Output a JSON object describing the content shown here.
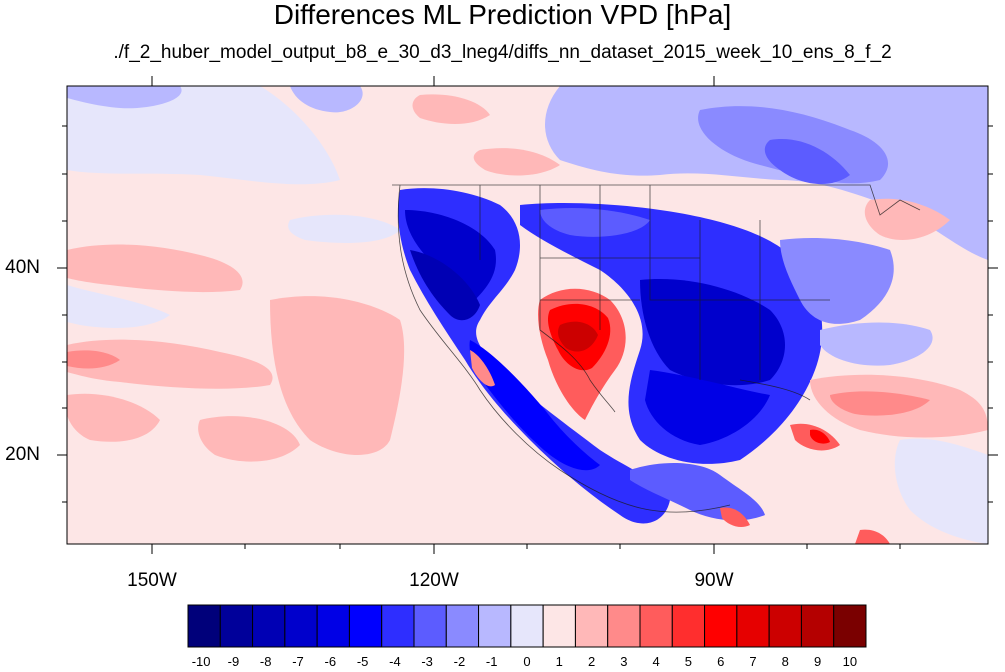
{
  "title": "Differences ML Prediction VPD [hPa]",
  "subtitle": "./f_2_huber_model_output_b8_e_30_d3_lneg4/diffs_nn_dataset_2015_week_10_ens_8_f_2",
  "map": {
    "projection": "equirectangular",
    "lon_range": [
      -160,
      -58
    ],
    "lat_range": [
      10,
      60
    ],
    "lat_labels": [
      "40N",
      "20N"
    ],
    "lon_labels": [
      "150W",
      "120W",
      "90W"
    ],
    "lat_ticks": [
      20,
      40
    ],
    "lon_ticks": [
      -150,
      -120,
      -90
    ]
  },
  "colorbar": {
    "labels": [
      "-10",
      "-9",
      "-8",
      "-7",
      "-6",
      "-5",
      "-4",
      "-3",
      "-2",
      "-1",
      "0",
      "1",
      "2",
      "3",
      "4",
      "5",
      "6",
      "7",
      "8",
      "9",
      "10"
    ],
    "colors": [
      "#00007a",
      "#00009a",
      "#0000b4",
      "#0000cc",
      "#0000e6",
      "#0000ff",
      "#2e2eff",
      "#5c5cff",
      "#8a8aff",
      "#b8b8ff",
      "#e6e6fb",
      "#fde6e6",
      "#ffb8b8",
      "#ff8a8a",
      "#ff5c5c",
      "#ff2e2e",
      "#ff0000",
      "#e60000",
      "#cc0000",
      "#b40000",
      "#7a0000"
    ]
  }
}
